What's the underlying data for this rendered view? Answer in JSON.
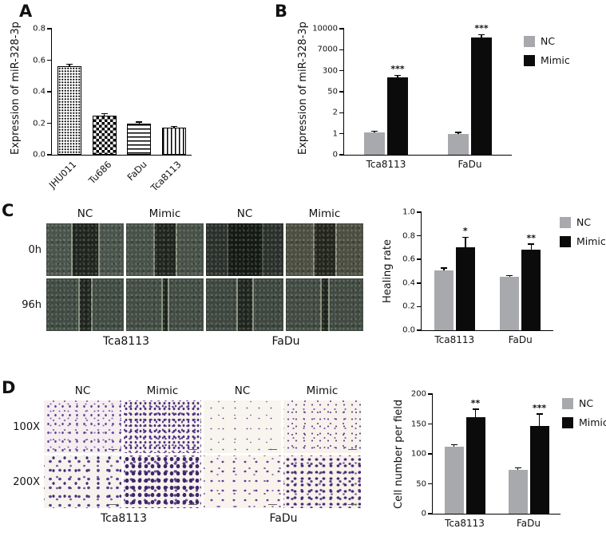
{
  "figure": {
    "panels": {
      "A": {
        "label": "A"
      },
      "B": {
        "label": "B"
      },
      "C": {
        "label": "C",
        "col_headers": [
          "NC",
          "Mimic",
          "NC",
          "Mimic"
        ],
        "row_labels": [
          "0h",
          "96h"
        ],
        "group_labels": [
          "Tca8113",
          "FaDu"
        ]
      },
      "D": {
        "label": "D",
        "col_headers": [
          "NC",
          "Mimic",
          "NC",
          "Mimic"
        ],
        "row_labels": [
          "100X",
          "200X"
        ],
        "group_labels": [
          "Tca8113",
          "FaDu"
        ]
      }
    },
    "colors": {
      "nc": "#a7a9ac",
      "mimic": "#0b0b0b"
    }
  },
  "chart_data": [
    {
      "id": "A",
      "type": "bar",
      "title": "",
      "ylabel": "Expression of miR-328-3p",
      "categories": [
        "JHU011",
        "Tu686",
        "FaDu",
        "Tca8113"
      ],
      "series": [
        {
          "name": "",
          "values": [
            0.56,
            0.25,
            0.2,
            0.17
          ],
          "errors": [
            0.015,
            0.012,
            0.01,
            0.012
          ],
          "patterns": [
            "dots",
            "checker",
            "hlines",
            "vlines"
          ]
        }
      ],
      "yticks": [
        0,
        0.2,
        0.4,
        0.6,
        0.8
      ],
      "ytick_labels": [
        "0.0",
        "0.2",
        "0.4",
        "0.6",
        "0.8"
      ],
      "ylim": [
        0,
        0.8
      ],
      "legend": false,
      "rotate_xlabels": true
    },
    {
      "id": "B",
      "type": "bar",
      "title": "",
      "ylabel": "Expression of miR-328-3p",
      "categories": [
        "Tca8113",
        "FaDu"
      ],
      "series": [
        {
          "name": "NC",
          "color": "#a7a9ac",
          "values": [
            1.05,
            1.0
          ],
          "errors": [
            0.08,
            0.07
          ]
        },
        {
          "name": "Mimic",
          "color": "#0b0b0b",
          "values": [
            220,
            8700
          ],
          "errors": [
            25,
            450
          ],
          "sig": [
            "***",
            "***"
          ]
        }
      ],
      "yticks": [
        0,
        1,
        2,
        50,
        300,
        7000,
        10000
      ],
      "ytick_labels": [
        "0",
        "1",
        "2",
        "50",
        "300",
        "7000",
        "10000"
      ],
      "axis_note": "segmented y-axis",
      "legend": true,
      "rotate_xlabels": false
    },
    {
      "id": "C",
      "type": "bar",
      "title": "",
      "ylabel": "Healing rate",
      "categories": [
        "Tca8113",
        "FaDu"
      ],
      "series": [
        {
          "name": "NC",
          "color": "#a7a9ac",
          "values": [
            0.51,
            0.45
          ],
          "errors": [
            0.02,
            0.015
          ]
        },
        {
          "name": "Mimic",
          "color": "#0b0b0b",
          "values": [
            0.7,
            0.68
          ],
          "errors": [
            0.09,
            0.05
          ],
          "sig": [
            "*",
            "**"
          ]
        }
      ],
      "yticks": [
        0,
        0.2,
        0.4,
        0.6,
        0.8,
        1.0
      ],
      "ytick_labels": [
        "0.0",
        "0.2",
        "0.4",
        "0.6",
        "0.8",
        "1.0"
      ],
      "ylim": [
        0,
        1
      ],
      "legend": true,
      "rotate_xlabels": false
    },
    {
      "id": "D",
      "type": "bar",
      "title": "",
      "ylabel": "Cell number per field",
      "categories": [
        "Tca8113",
        "FaDu"
      ],
      "series": [
        {
          "name": "NC",
          "color": "#a7a9ac",
          "values": [
            112,
            73
          ],
          "errors": [
            4,
            4
          ]
        },
        {
          "name": "Mimic",
          "color": "#0b0b0b",
          "values": [
            162,
            147
          ],
          "errors": [
            13,
            20
          ],
          "sig": [
            "**",
            "***"
          ]
        }
      ],
      "yticks": [
        0,
        50,
        100,
        150,
        200
      ],
      "ytick_labels": [
        "0",
        "50",
        "100",
        "150",
        "200"
      ],
      "ylim": [
        0,
        200
      ],
      "legend": true,
      "rotate_xlabels": false
    }
  ]
}
